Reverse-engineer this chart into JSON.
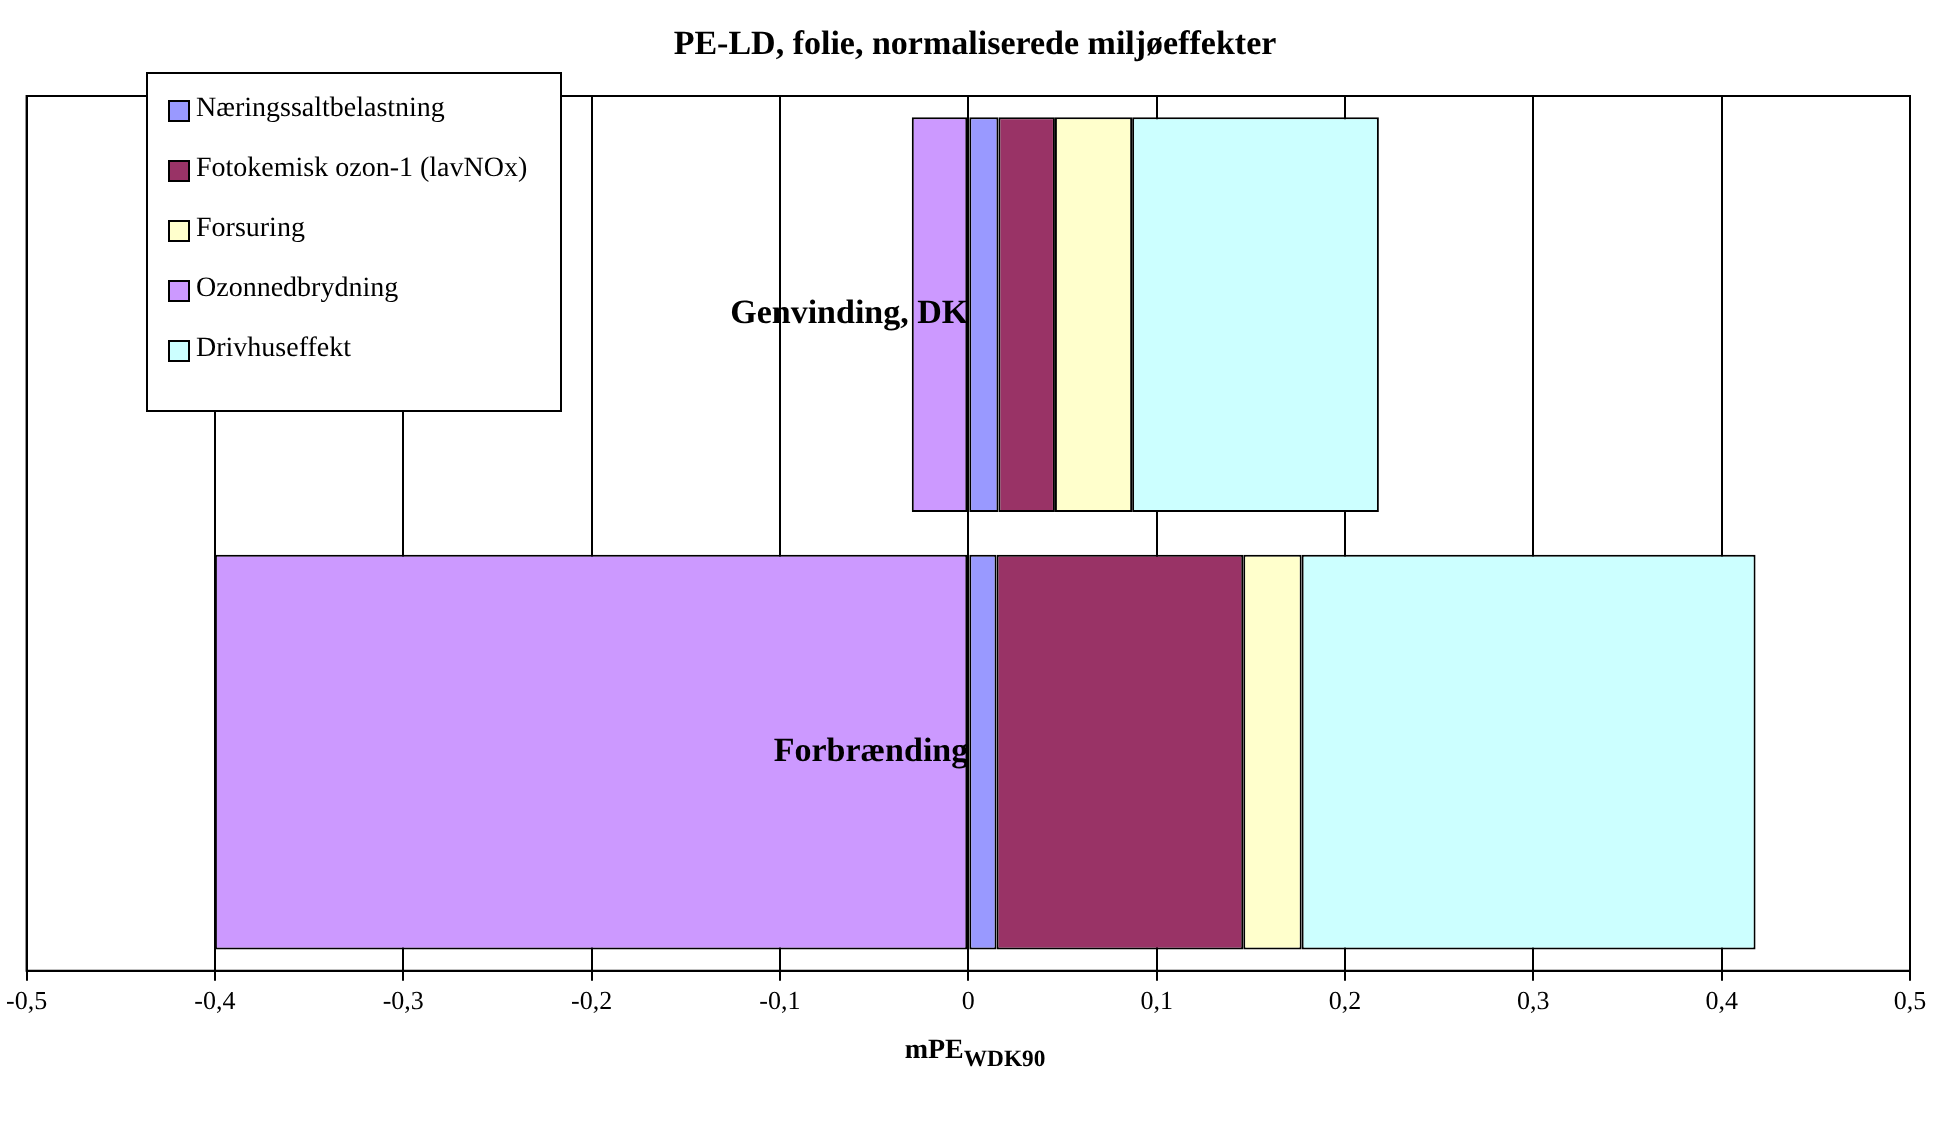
{
  "chart_data": {
    "type": "bar",
    "orientation": "horizontal",
    "stacked": true,
    "title": "PE-LD, folie, normaliserede miljøeffekter",
    "xlabel": "mPE$_{WDK90}$",
    "categories": [
      "Genvinding, DK",
      "Forbrænding"
    ],
    "series": [
      {
        "name": "Næringssaltbelastning",
        "color": "#9999ff",
        "values": [
          0.016,
          0.015
        ]
      },
      {
        "name": "Fotokemisk ozon-1 (lavNOx)",
        "color": "#993366",
        "values": [
          0.03,
          0.131
        ]
      },
      {
        "name": "Forsuring",
        "color": "#ffffcc",
        "values": [
          0.041,
          0.031
        ]
      },
      {
        "name": "Ozonnedbrydning",
        "color": "#cc99ff",
        "values": [
          -0.03,
          -0.4
        ]
      },
      {
        "name": "Drivhuseffekt",
        "color": "#ccffff",
        "values": [
          0.131,
          0.241
        ]
      }
    ],
    "xlim": [
      -0.5,
      0.5
    ],
    "xticks": [
      {
        "value": -0.5,
        "label": "-0,5"
      },
      {
        "value": -0.4,
        "label": "-0,4"
      },
      {
        "value": -0.3,
        "label": "-0,3"
      },
      {
        "value": -0.2,
        "label": "-0,2"
      },
      {
        "value": -0.1,
        "label": "-0,1"
      },
      0,
      {
        "value": 0.1,
        "label": "0,1"
      },
      {
        "value": 0.2,
        "label": "0,2"
      },
      {
        "value": 0.3,
        "label": "0,3"
      },
      {
        "value": 0.4,
        "label": "0,4"
      },
      {
        "value": 0.5,
        "label": "0,5"
      }
    ],
    "grid": "x",
    "legend": "top left"
  }
}
